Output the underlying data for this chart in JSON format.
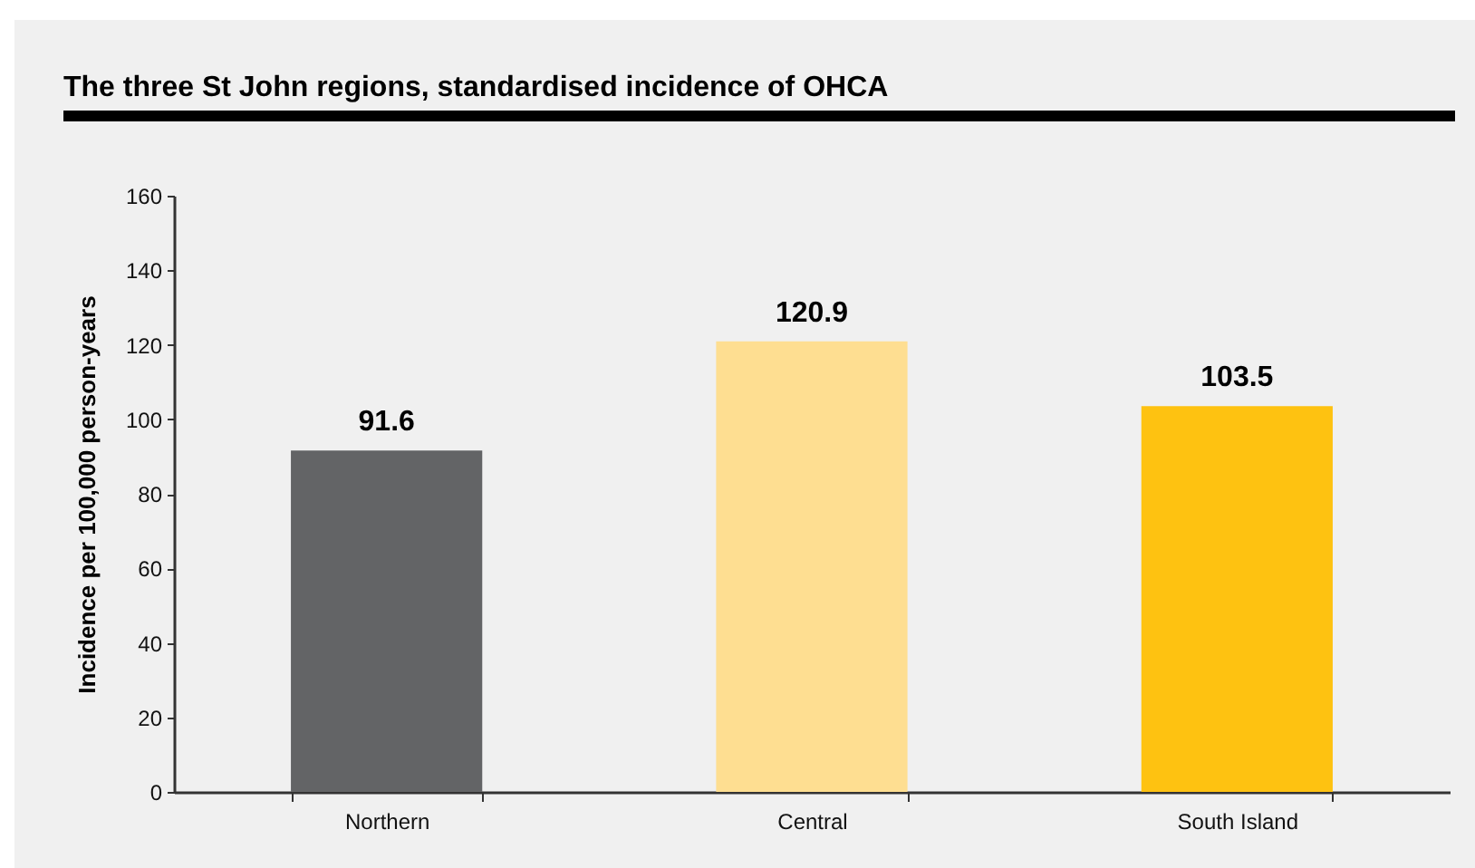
{
  "chart_data": {
    "type": "bar",
    "title": "The three St John regions, standardised incidence of OHCA",
    "ylabel": "Incidence per 100,000 person-years",
    "categories": [
      "Northern",
      "Central",
      "South Island"
    ],
    "values": [
      91.6,
      120.9,
      103.5
    ],
    "colors": [
      "#636466",
      "#fede91",
      "#fec211"
    ],
    "ylim": [
      0,
      160
    ],
    "yticks": [
      0,
      20,
      40,
      60,
      80,
      100,
      120,
      140,
      160
    ],
    "data_labels": true
  }
}
